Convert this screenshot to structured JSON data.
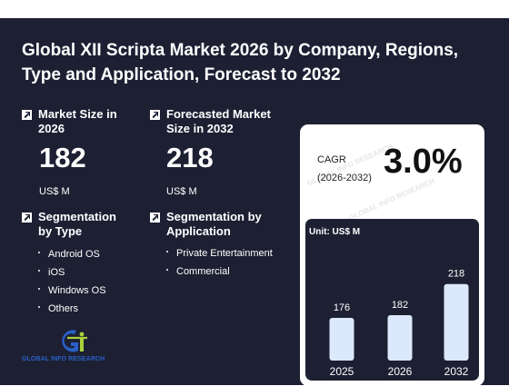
{
  "title": "Global XII Scripta Market 2026 by Company, Regions, Type and Application, Forecast to 2032",
  "market_size": {
    "label": "Market Size in 2026",
    "value": "182",
    "unit": "US$ M"
  },
  "forecast": {
    "label": "Forecasted Market Size in 2032",
    "value": "218",
    "unit": "US$ M"
  },
  "seg_type": {
    "label": "Segmentation by Type",
    "items": [
      "Android OS",
      "iOS",
      "Windows OS",
      "Others"
    ]
  },
  "seg_app": {
    "label": "Segmentation by Application",
    "items": [
      "Private Entertainment",
      "Commercial"
    ]
  },
  "cagr": {
    "label_line1": "CAGR",
    "label_line2": "(2026-2032)",
    "value": "3.0%"
  },
  "logo": {
    "text": "GLOBAL INFO RESEARCH"
  },
  "colors": {
    "background": "#1d2033",
    "bar": "#dce8fb",
    "card": "#ffffff",
    "logo_blue": "#2a60c8",
    "logo_green": "#a8d13a"
  },
  "chart_data": {
    "type": "bar",
    "unit_label": "Unit: US$ M",
    "categories": [
      "2025",
      "2026",
      "2032"
    ],
    "values": [
      176,
      182,
      218
    ]
  }
}
